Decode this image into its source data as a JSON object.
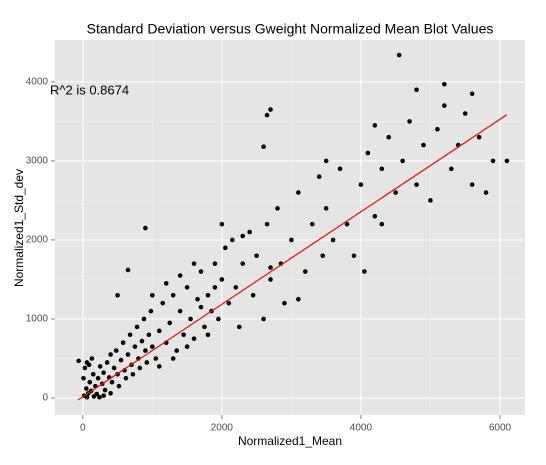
{
  "chart_data": {
    "type": "scatter",
    "title": "Standard Deviation versus Gweight Normalized Mean Blot Values",
    "x_label": "Normalized1_Mean",
    "y_label": "Normalized1_Std_dev",
    "annotation": "R^2 is  0.8674",
    "xlim": [
      -400,
      6360
    ],
    "ylim": [
      -215,
      4530
    ],
    "xticks": [
      0,
      2000,
      4000,
      6000
    ],
    "yticks": [
      0,
      1000,
      2000,
      3000,
      4000
    ],
    "x_minor_ticks": [
      1000,
      3000,
      5000
    ],
    "y_minor_ticks": [
      500,
      1500,
      2500,
      3500
    ],
    "grid": true,
    "color": "#000000",
    "x": [
      20,
      50,
      80,
      100,
      120,
      150,
      180,
      200,
      220,
      250,
      280,
      300,
      320,
      350,
      380,
      400,
      420,
      450,
      480,
      500,
      520,
      550,
      580,
      600,
      620,
      650,
      680,
      700,
      720,
      750,
      780,
      800,
      820,
      850,
      880,
      900,
      920,
      950,
      980,
      1000,
      30,
      60,
      10,
      90,
      130,
      160,
      240,
      300,
      400,
      60,
      1050,
      1100,
      1150,
      1200,
      1250,
      1300,
      1350,
      1400,
      1450,
      1500,
      1550,
      1600,
      1650,
      1700,
      1750,
      1800,
      1850,
      1900,
      1950,
      2000,
      1000,
      1100,
      1200,
      1300,
      1400,
      1500,
      1600,
      1700,
      1800,
      1900,
      2050,
      2100,
      2150,
      2200,
      2250,
      2300,
      2400,
      2450,
      2500,
      2600,
      2650,
      2700,
      2800,
      2850,
      2900,
      3000,
      3100,
      3200,
      3300,
      3400,
      3450,
      3500,
      3600,
      3700,
      3800,
      3900,
      4000,
      4100,
      4200,
      4300,
      4400,
      4500,
      4600,
      4700,
      4800,
      4900,
      5000,
      5100,
      5200,
      5300,
      5400,
      5500,
      5600,
      5700,
      5800,
      5900,
      2000,
      2300,
      2700,
      3100,
      3500,
      4200,
      4800,
      4300,
      4550,
      2700,
      2650,
      5600,
      5200,
      6100,
      -60,
      900,
      650,
      2600,
      500,
      4050
    ],
    "series": [
      {
        "name": "points",
        "color": "#000000",
        "values": [
          30,
          120,
          60,
          200,
          90,
          300,
          150,
          50,
          250,
          400,
          180,
          320,
          100,
          450,
          260,
          550,
          200,
          380,
          600,
          300,
          150,
          480,
          700,
          350,
          250,
          550,
          800,
          420,
          300,
          650,
          900,
          500,
          380,
          720,
          1000,
          600,
          450,
          800,
          1100,
          650,
          380,
          450,
          250,
          420,
          500,
          20,
          10,
          30,
          60,
          10,
          500,
          850,
          1200,
          700,
          950,
          1300,
          600,
          1100,
          800,
          1400,
          1000,
          750,
          1250,
          1600,
          900,
          1300,
          1100,
          1700,
          1000,
          1500,
          1300,
          400,
          1450,
          500,
          1550,
          650,
          1700,
          1150,
          800,
          1400,
          1900,
          1200,
          2000,
          1400,
          900,
          1700,
          2100,
          1300,
          1800,
          1000,
          2200,
          1500,
          2400,
          1700,
          1200,
          2000,
          2600,
          1600,
          2200,
          2800,
          1800,
          2400,
          2000,
          2900,
          2200,
          1800,
          2700,
          3100,
          2300,
          2900,
          3300,
          2600,
          3000,
          3500,
          2700,
          3200,
          2500,
          3400,
          3700,
          2900,
          3200,
          3600,
          2700,
          3300,
          2600,
          3000,
          2200,
          2050,
          1650,
          1250,
          3000,
          3450,
          3900,
          2200,
          4340,
          3650,
          3580,
          3850,
          3970,
          3000,
          470,
          2150,
          1620,
          3180,
          1300,
          1600
        ]
      },
      {
        "name": "fit",
        "color": "#e41a1c",
        "x": [
          -70,
          6100
        ],
        "values": [
          -25,
          3585
        ]
      }
    ]
  }
}
